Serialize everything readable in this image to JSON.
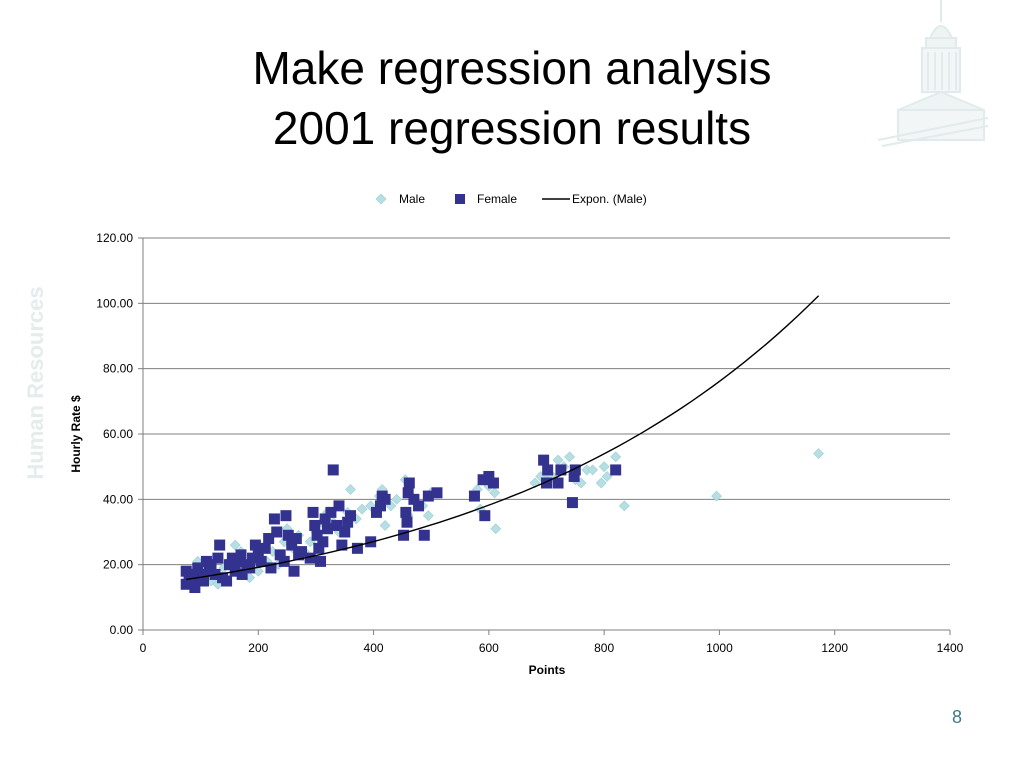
{
  "slide": {
    "title_line1": "Make regression analysis",
    "title_line2": "2001 regression results",
    "side_label": "Human Resources",
    "page_number": "8"
  },
  "colors": {
    "male": "#b7dfe3",
    "male_stroke": "#9ccfd4",
    "female": "#33338f",
    "trend": "#000000",
    "grid": "#7f7f7f",
    "watermark": "#e6eeee",
    "page_number": "#3d7a8a"
  },
  "icons": {
    "watermark": "capitol-dome-icon"
  },
  "chart_data": {
    "type": "scatter",
    "xlabel": "Points",
    "ylabel": "Hourly Rate $",
    "xlim": [
      0,
      1400
    ],
    "ylim": [
      0,
      120
    ],
    "x_ticks": [
      0,
      200,
      400,
      600,
      800,
      1000,
      1200,
      1400
    ],
    "y_ticks": [
      0,
      20,
      40,
      60,
      80,
      100,
      120
    ],
    "x_tick_labels": [
      "0",
      "200",
      "400",
      "600",
      "800",
      "1000",
      "1200",
      "1400"
    ],
    "y_tick_labels": [
      "0.00",
      "20.00",
      "40.00",
      "60.00",
      "80.00",
      "100.00",
      "120.00"
    ],
    "grid": "horizontal",
    "legend": {
      "placement": "top",
      "entries": [
        "Male",
        "Female",
        "Expon. (Male)"
      ]
    },
    "series": [
      {
        "name": "Male",
        "marker": "diamond",
        "points": [
          [
            80,
            16
          ],
          [
            90,
            18
          ],
          [
            95,
            21
          ],
          [
            105,
            17
          ],
          [
            110,
            20
          ],
          [
            118,
            15
          ],
          [
            125,
            22
          ],
          [
            130,
            14
          ],
          [
            140,
            19
          ],
          [
            150,
            21
          ],
          [
            160,
            26
          ],
          [
            165,
            18
          ],
          [
            170,
            24
          ],
          [
            175,
            20
          ],
          [
            185,
            16
          ],
          [
            190,
            22
          ],
          [
            200,
            18
          ],
          [
            205,
            25
          ],
          [
            215,
            21
          ],
          [
            225,
            24
          ],
          [
            235,
            20
          ],
          [
            245,
            27
          ],
          [
            250,
            31
          ],
          [
            260,
            25
          ],
          [
            270,
            29
          ],
          [
            280,
            24
          ],
          [
            290,
            27
          ],
          [
            300,
            30
          ],
          [
            310,
            33
          ],
          [
            320,
            36
          ],
          [
            330,
            33
          ],
          [
            340,
            30
          ],
          [
            355,
            36
          ],
          [
            360,
            43
          ],
          [
            370,
            34
          ],
          [
            380,
            37
          ],
          [
            395,
            38
          ],
          [
            410,
            41
          ],
          [
            415,
            43
          ],
          [
            420,
            32
          ],
          [
            430,
            38
          ],
          [
            440,
            40
          ],
          [
            455,
            46
          ],
          [
            460,
            35
          ],
          [
            470,
            40
          ],
          [
            485,
            38
          ],
          [
            495,
            35
          ],
          [
            500,
            42
          ],
          [
            580,
            43
          ],
          [
            585,
            37
          ],
          [
            600,
            44
          ],
          [
            610,
            42
          ],
          [
            612,
            31
          ],
          [
            680,
            45
          ],
          [
            690,
            47
          ],
          [
            700,
            48
          ],
          [
            710,
            47
          ],
          [
            720,
            52
          ],
          [
            730,
            50
          ],
          [
            740,
            53
          ],
          [
            750,
            46
          ],
          [
            760,
            45
          ],
          [
            770,
            49
          ],
          [
            780,
            49
          ],
          [
            795,
            45
          ],
          [
            800,
            50
          ],
          [
            805,
            47
          ],
          [
            820,
            53
          ],
          [
            835,
            38
          ],
          [
            995,
            41
          ],
          [
            1172,
            54
          ]
        ]
      },
      {
        "name": "Female",
        "marker": "square",
        "points": [
          [
            75,
            14
          ],
          [
            75,
            18
          ],
          [
            80,
            17
          ],
          [
            88,
            16
          ],
          [
            90,
            13
          ],
          [
            95,
            19
          ],
          [
            100,
            17
          ],
          [
            105,
            15
          ],
          [
            110,
            21
          ],
          [
            115,
            18
          ],
          [
            118,
            20
          ],
          [
            125,
            17
          ],
          [
            130,
            22
          ],
          [
            133,
            26
          ],
          [
            138,
            16
          ],
          [
            145,
            15
          ],
          [
            150,
            20
          ],
          [
            155,
            22
          ],
          [
            160,
            18
          ],
          [
            165,
            21
          ],
          [
            170,
            23
          ],
          [
            172,
            17
          ],
          [
            180,
            20
          ],
          [
            185,
            19
          ],
          [
            190,
            22
          ],
          [
            195,
            26
          ],
          [
            200,
            24
          ],
          [
            205,
            21
          ],
          [
            212,
            25
          ],
          [
            218,
            28
          ],
          [
            222,
            19
          ],
          [
            228,
            34
          ],
          [
            232,
            30
          ],
          [
            238,
            23
          ],
          [
            245,
            21
          ],
          [
            248,
            35
          ],
          [
            252,
            29
          ],
          [
            258,
            26
          ],
          [
            262,
            18
          ],
          [
            266,
            28
          ],
          [
            270,
            23
          ],
          [
            275,
            24
          ],
          [
            290,
            22
          ],
          [
            295,
            36
          ],
          [
            298,
            32
          ],
          [
            302,
            29
          ],
          [
            305,
            25
          ],
          [
            308,
            21
          ],
          [
            312,
            27
          ],
          [
            316,
            34
          ],
          [
            320,
            31
          ],
          [
            326,
            36
          ],
          [
            330,
            49
          ],
          [
            336,
            32
          ],
          [
            340,
            38
          ],
          [
            345,
            26
          ],
          [
            350,
            30
          ],
          [
            355,
            33
          ],
          [
            360,
            35
          ],
          [
            372,
            25
          ],
          [
            395,
            27
          ],
          [
            405,
            36
          ],
          [
            412,
            38
          ],
          [
            415,
            41
          ],
          [
            420,
            40
          ],
          [
            452,
            29
          ],
          [
            456,
            36
          ],
          [
            458,
            33
          ],
          [
            460,
            42
          ],
          [
            462,
            45
          ],
          [
            470,
            40
          ],
          [
            478,
            38
          ],
          [
            488,
            29
          ],
          [
            495,
            41
          ],
          [
            510,
            42
          ],
          [
            575,
            41
          ],
          [
            590,
            46
          ],
          [
            593,
            35
          ],
          [
            600,
            47
          ],
          [
            608,
            45
          ],
          [
            695,
            52
          ],
          [
            700,
            45
          ],
          [
            702,
            49
          ],
          [
            720,
            45
          ],
          [
            725,
            49
          ],
          [
            745,
            39
          ],
          [
            748,
            47
          ],
          [
            750,
            49
          ],
          [
            820,
            49
          ]
        ]
      }
    ],
    "trendline": {
      "name": "Expon. (Male)",
      "type": "exponential",
      "x_range": [
        75,
        1172
      ],
      "a": 13.6,
      "b": 0.001722
    }
  }
}
